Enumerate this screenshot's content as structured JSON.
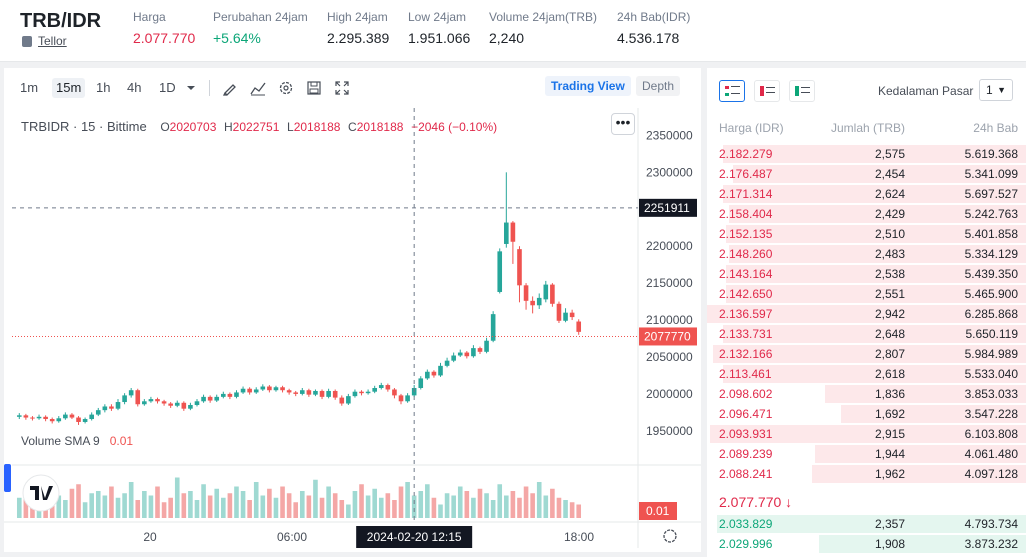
{
  "header": {
    "pair": "TRB/IDR",
    "coin_link": "Tellor",
    "stats": [
      {
        "label": "Harga",
        "value": "2.077.770",
        "color": "red"
      },
      {
        "label": "Perubahan 24jam",
        "value": "+5.64%",
        "color": "green"
      },
      {
        "label": "High 24jam",
        "value": "2.295.389"
      },
      {
        "label": "Low 24jam",
        "value": "1.951.066"
      },
      {
        "label": "Volume 24jam(TRB)",
        "value": "2,240"
      },
      {
        "label": "24h Bab(IDR)",
        "value": "4.536.178"
      }
    ]
  },
  "toolbar": {
    "intervals": [
      "1m",
      "15m",
      "1h",
      "4h",
      "1D"
    ],
    "active_interval": "15m",
    "trading_view": "Trading View",
    "depth": "Depth"
  },
  "chart": {
    "symbol": "TRBIDR · 15 · Bittime",
    "o_label": "O",
    "o_val": "2020703",
    "h_label": "H",
    "h_val": "2022751",
    "l_label": "L",
    "l_val": "2018188",
    "c_label": "C",
    "c_val": "2018188",
    "chg": "−2046 (−0.10%)",
    "volume_label": "Volume SMA 9",
    "volume_val": "0.01",
    "crosshair_price": "2251911",
    "last_price": "2077770",
    "volume_tag": "0.01",
    "crosshair_time": "2024-02-20  12:15",
    "x_labels": [
      "20",
      "06:00",
      "18:00"
    ]
  },
  "chart_data": {
    "type": "candlestick",
    "y_ticks": [
      1950000,
      2000000,
      2050000,
      2100000,
      2150000,
      2200000,
      2250000,
      2300000,
      2350000
    ],
    "ylim": [
      1920000,
      2360000
    ],
    "last_price": 2077770,
    "crosshair_price": 2251911,
    "candles": [
      [
        1969000,
        1971000,
        1974000,
        1966000
      ],
      [
        1971000,
        1968000,
        1973000,
        1965000
      ],
      [
        1968000,
        1967000,
        1970000,
        1964000
      ],
      [
        1967000,
        1969000,
        1972000,
        1965000
      ],
      [
        1969000,
        1966000,
        1971000,
        1963000
      ],
      [
        1966000,
        1963000,
        1968000,
        1960000
      ],
      [
        1963000,
        1967000,
        1970000,
        1961000
      ],
      [
        1967000,
        1972000,
        1975000,
        1965000
      ],
      [
        1972000,
        1968000,
        1974000,
        1966000
      ],
      [
        1968000,
        1962000,
        1970000,
        1958000
      ],
      [
        1962000,
        1966000,
        1968000,
        1960000
      ],
      [
        1966000,
        1972000,
        1975000,
        1964000
      ],
      [
        1972000,
        1978000,
        1981000,
        1970000
      ],
      [
        1978000,
        1983000,
        1986000,
        1975000
      ],
      [
        1983000,
        1980000,
        1986000,
        1977000
      ],
      [
        1980000,
        1989000,
        1993000,
        1978000
      ],
      [
        1989000,
        1998000,
        2001000,
        1986000
      ],
      [
        1998000,
        2005000,
        2008000,
        1995000
      ],
      [
        2005000,
        1986000,
        2007000,
        1983000
      ],
      [
        1986000,
        1990000,
        1993000,
        1984000
      ],
      [
        1990000,
        1993000,
        1996000,
        1988000
      ],
      [
        1993000,
        1990000,
        1995000,
        1987000
      ],
      [
        1990000,
        1987000,
        1992000,
        1984000
      ],
      [
        1987000,
        1984000,
        1989000,
        1981000
      ],
      [
        1984000,
        1988000,
        1991000,
        1982000
      ],
      [
        1988000,
        1980000,
        1990000,
        1977000
      ],
      [
        1980000,
        1985000,
        1988000,
        1978000
      ],
      [
        1985000,
        1990000,
        1993000,
        1983000
      ],
      [
        1990000,
        1996000,
        1999000,
        1988000
      ],
      [
        1996000,
        1991000,
        1998000,
        1988000
      ],
      [
        1991000,
        1996000,
        1999000,
        1989000
      ],
      [
        1996000,
        2000000,
        2003000,
        1994000
      ],
      [
        2000000,
        1996000,
        2002000,
        1993000
      ],
      [
        1996000,
        2002000,
        2005000,
        1994000
      ],
      [
        2002000,
        2007000,
        2010000,
        2000000
      ],
      [
        2007000,
        2002000,
        2009000,
        1999000
      ],
      [
        2002000,
        2006000,
        2009000,
        2000000
      ],
      [
        2006000,
        2010000,
        2013000,
        2004000
      ],
      [
        2010000,
        2005000,
        2012000,
        2002000
      ],
      [
        2005000,
        2009000,
        2011000,
        2003000
      ],
      [
        2009000,
        2005000,
        2011000,
        2002000
      ],
      [
        2005000,
        2002000,
        2007000,
        1999000
      ],
      [
        2002000,
        2000000,
        2004000,
        1997000
      ],
      [
        2000000,
        2005000,
        2008000,
        1998000
      ],
      [
        2005000,
        1999000,
        2007000,
        1996000
      ],
      [
        1999000,
        2004000,
        2006000,
        1997000
      ],
      [
        2004000,
        1996000,
        2006000,
        1993000
      ],
      [
        1996000,
        2004000,
        2007000,
        1994000
      ],
      [
        2004000,
        1995000,
        2006000,
        1992000
      ],
      [
        1995000,
        1987000,
        1998000,
        1984000
      ],
      [
        1987000,
        1997000,
        2000000,
        1985000
      ],
      [
        1997000,
        2003000,
        2006000,
        1995000
      ],
      [
        2003000,
        2001000,
        2005000,
        1998000
      ],
      [
        2001000,
        2003000,
        2006000,
        1999000
      ],
      [
        2003000,
        2008000,
        2011000,
        2001000
      ],
      [
        2008000,
        2012000,
        2015000,
        2006000
      ],
      [
        2012000,
        2006000,
        2014000,
        2003000
      ],
      [
        2006000,
        1998000,
        2008000,
        1994000
      ],
      [
        1998000,
        1990000,
        2000000,
        1986000
      ],
      [
        1990000,
        1998000,
        2001000,
        1988000
      ],
      [
        1998000,
        2008000,
        2012000,
        1996000
      ],
      [
        2008000,
        2021000,
        2024000,
        2006000
      ],
      [
        2021000,
        2030000,
        2033000,
        2019000
      ],
      [
        2030000,
        2025000,
        2032000,
        2022000
      ],
      [
        2025000,
        2038000,
        2042000,
        2023000
      ],
      [
        2038000,
        2045000,
        2049000,
        2036000
      ],
      [
        2045000,
        2052000,
        2056000,
        2043000
      ],
      [
        2052000,
        2056000,
        2060000,
        2050000
      ],
      [
        2056000,
        2051000,
        2058000,
        2048000
      ],
      [
        2051000,
        2062000,
        2066000,
        2049000
      ],
      [
        2062000,
        2057000,
        2064000,
        2054000
      ],
      [
        2057000,
        2072000,
        2076000,
        2055000
      ],
      [
        2072000,
        2108000,
        2112000,
        2070000
      ],
      [
        2138000,
        2193000,
        2197000,
        2136000
      ],
      [
        2203000,
        2232000,
        2300000,
        2198000
      ],
      [
        2232000,
        2206000,
        2234000,
        2176000
      ],
      [
        2196000,
        2147000,
        2200000,
        2124000
      ],
      [
        2147000,
        2126000,
        2150000,
        2114000
      ],
      [
        2126000,
        2120000,
        2132000,
        2109000
      ],
      [
        2120000,
        2130000,
        2136000,
        2115000
      ],
      [
        2128000,
        2148000,
        2153000,
        2124000
      ],
      [
        2148000,
        2122000,
        2150000,
        2118000
      ],
      [
        2122000,
        2099000,
        2125000,
        2096000
      ],
      [
        2099000,
        2110000,
        2116000,
        2097000
      ],
      [
        2110000,
        2104000,
        2114000,
        2100000
      ],
      [
        2098000,
        2084000,
        2101000,
        2080000
      ]
    ],
    "volumes": [
      0.45,
      0.55,
      0.7,
      0.3,
      0.6,
      0.8,
      0.5,
      0.4,
      0.65,
      0.75,
      0.35,
      0.55,
      0.6,
      0.5,
      0.7,
      0.45,
      0.55,
      0.8,
      0.4,
      0.6,
      0.5,
      0.7,
      0.35,
      0.45,
      0.9,
      0.55,
      0.6,
      0.4,
      0.75,
      0.5,
      0.65,
      0.45,
      0.55,
      0.7,
      0.6,
      0.4,
      0.8,
      0.5,
      0.65,
      0.45,
      0.7,
      0.55,
      0.35,
      0.6,
      0.5,
      0.85,
      0.45,
      0.7,
      0.55,
      0.4,
      0.3,
      0.6,
      0.75,
      0.5,
      0.65,
      0.45,
      0.55,
      0.4,
      0.7,
      0.8,
      0.5,
      0.6,
      0.75,
      0.45,
      0.3,
      0.55,
      0.5,
      0.7,
      0.6,
      0.45,
      0.65,
      0.55,
      0.4,
      0.75,
      0.5,
      0.6,
      0.45,
      0.7,
      0.55,
      0.8,
      0.5,
      0.65,
      0.45,
      0.4,
      0.35,
      0.3
    ]
  },
  "orderbook": {
    "title": "Kedalaman Pasar",
    "depth_sel": "1",
    "headers": [
      "Harga (IDR)",
      "Jumlah (TRB)",
      "24h Bab"
    ],
    "asks": [
      {
        "p": "2.182.279",
        "q": "2,575",
        "t": "5.619.368",
        "w": 0.95
      },
      {
        "p": "2.176.487",
        "q": "2,454",
        "t": "5.341.099",
        "w": 0.92
      },
      {
        "p": "2.171.314",
        "q": "2,624",
        "t": "5.697.527",
        "w": 0.95
      },
      {
        "p": "2.158.404",
        "q": "2,429",
        "t": "5.242.763",
        "w": 0.93
      },
      {
        "p": "2.152.135",
        "q": "2,510",
        "t": "5.401.858",
        "w": 0.94
      },
      {
        "p": "2.148.260",
        "q": "2,483",
        "t": "5.334.129",
        "w": 0.93
      },
      {
        "p": "2.143.164",
        "q": "2,538",
        "t": "5.439.350",
        "w": 0.94
      },
      {
        "p": "2.142.650",
        "q": "2,551",
        "t": "5.465.900",
        "w": 0.94
      },
      {
        "p": "2.136.597",
        "q": "2,942",
        "t": "6.285.868",
        "w": 1.0
      },
      {
        "p": "2.133.731",
        "q": "2,648",
        "t": "5.650.119",
        "w": 0.95
      },
      {
        "p": "2.132.166",
        "q": "2,807",
        "t": "5.984.989",
        "w": 0.98
      },
      {
        "p": "2.113.461",
        "q": "2,618",
        "t": "5.533.040",
        "w": 0.95
      },
      {
        "p": "2.098.602",
        "q": "1,836",
        "t": "3.853.033",
        "w": 0.63
      },
      {
        "p": "2.096.471",
        "q": "1,692",
        "t": "3.547.228",
        "w": 0.58
      },
      {
        "p": "2.093.931",
        "q": "2,915",
        "t": "6.103.808",
        "w": 0.99
      },
      {
        "p": "2.089.239",
        "q": "1,944",
        "t": "4.061.480",
        "w": 0.66
      },
      {
        "p": "2.088.241",
        "q": "1,962",
        "t": "4.097.128",
        "w": 0.67
      }
    ],
    "mid": "2.077.770 ↓",
    "bids": [
      {
        "p": "2.033.829",
        "q": "2,357",
        "t": "4.793.734",
        "w": 0.97
      },
      {
        "p": "2.029.996",
        "q": "1,908",
        "t": "3.873.232",
        "w": 0.65
      }
    ]
  },
  "colors": {
    "up": "#26a69a",
    "down": "#ef5350",
    "ask": "#e0294a",
    "bid": "#0ca678",
    "askbg": "#fde8ea",
    "bidbg": "#e4f6ef"
  }
}
